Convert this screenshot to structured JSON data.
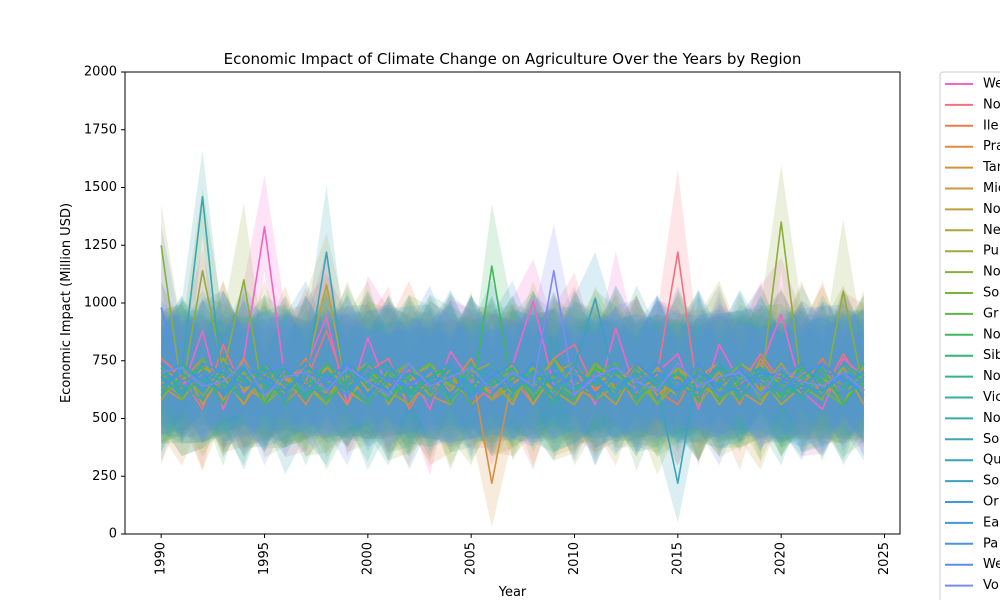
{
  "chart_data": {
    "type": "line",
    "title": "Economic Impact of Climate Change on Agriculture Over the Years by Region",
    "xlabel": "Year",
    "ylabel": "Economic Impact (Million USD)",
    "xlim": [
      1988.25,
      2025.75
    ],
    "ylim": [
      0,
      2000
    ],
    "x_ticks": [
      1990,
      1995,
      2000,
      2005,
      2010,
      2015,
      2020,
      2025
    ],
    "x_tick_labels": [
      "1990",
      "1995",
      "2000",
      "2005",
      "2010",
      "2015",
      "2020",
      "2025"
    ],
    "y_ticks": [
      0,
      250,
      500,
      750,
      1000,
      1250,
      1500,
      1750,
      2000
    ],
    "y_tick_labels": [
      "0",
      "250",
      "500",
      "750",
      "1000",
      "1250",
      "1500",
      "1750",
      "2000"
    ],
    "x_tick_rotation": "vertical",
    "grid": false,
    "legend_placement": "outside-right",
    "confidence_band": true,
    "x": [
      1990,
      1991,
      1992,
      1993,
      1994,
      1995,
      1996,
      1997,
      1998,
      1999,
      2000,
      2001,
      2002,
      2003,
      2004,
      2005,
      2006,
      2007,
      2008,
      2009,
      2010,
      2011,
      2012,
      2013,
      2014,
      2015,
      2016,
      2017,
      2018,
      2019,
      2020,
      2021,
      2022,
      2023,
      2024
    ],
    "series": [
      {
        "name": "We",
        "color": "#f564c5",
        "values": [
          700,
          620,
          880,
          540,
          760,
          1330,
          660,
          720,
          940,
          560,
          850,
          620,
          710,
          540,
          790,
          660,
          580,
          730,
          1010,
          640,
          720,
          560,
          890,
          610,
          700,
          780,
          540,
          820,
          660,
          720,
          950,
          620,
          540,
          760,
          680
        ]
      },
      {
        "name": "No",
        "color": "#f5707e",
        "values": [
          760,
          680,
          540,
          820,
          610,
          720,
          560,
          660,
          880,
          620,
          700,
          760,
          540,
          690,
          620,
          740,
          600,
          680,
          560,
          760,
          820,
          620,
          700,
          560,
          690,
          1220,
          580,
          720,
          640,
          780,
          660,
          720,
          600,
          780,
          640
        ]
      },
      {
        "name": "Ile",
        "color": "#ee7a4e",
        "values": [
          680,
          720,
          620,
          740,
          560,
          690,
          640,
          760,
          610,
          700,
          580,
          650,
          740,
          620,
          700,
          560,
          640,
          720,
          660,
          580,
          740,
          620,
          680,
          700,
          620,
          560,
          720,
          660,
          740,
          620,
          700,
          640,
          760,
          600,
          680
        ]
      },
      {
        "name": "Pra",
        "color": "#e08a42",
        "values": [
          640,
          580,
          700,
          620,
          760,
          600,
          680,
          560,
          720,
          640,
          700,
          620,
          560,
          700,
          640,
          760,
          580,
          640,
          720,
          620,
          560,
          700,
          640,
          740,
          600,
          680,
          620,
          700,
          560,
          760,
          640,
          600,
          700,
          640,
          720
        ]
      },
      {
        "name": "Tar",
        "color": "#d4903f",
        "values": [
          720,
          660,
          760,
          580,
          680,
          620,
          740,
          600,
          680,
          560,
          720,
          640,
          700,
          600,
          560,
          720,
          220,
          680,
          620,
          760,
          640,
          580,
          700,
          620,
          680,
          640,
          720,
          580,
          660,
          700,
          620,
          740,
          600,
          680,
          640
        ]
      },
      {
        "name": "Mic",
        "color": "#c79a3c",
        "values": [
          600,
          740,
          560,
          700,
          640,
          580,
          720,
          660,
          560,
          740,
          620,
          700,
          640,
          580,
          720,
          600,
          680,
          560,
          740,
          600,
          700,
          640,
          560,
          720,
          660,
          600,
          680,
          740,
          620,
          560,
          700,
          660,
          600,
          720,
          560
        ]
      },
      {
        "name": "No",
        "color": "#b9a239",
        "values": [
          660,
          600,
          720,
          680,
          560,
          740,
          600,
          700,
          1080,
          620,
          560,
          720,
          660,
          740,
          600,
          680,
          620,
          740,
          560,
          700,
          640,
          720,
          600,
          680,
          560,
          720,
          640,
          600,
          740,
          680,
          560,
          640,
          720,
          600,
          700
        ]
      },
      {
        "name": "Ne",
        "color": "#aba638",
        "values": [
          700,
          640,
          580,
          760,
          620,
          700,
          560,
          640,
          720,
          680,
          740,
          560,
          700,
          660,
          620,
          700,
          740,
          600,
          680,
          620,
          560,
          740,
          660,
          600,
          720,
          640,
          700,
          560,
          680,
          620,
          740,
          600,
          680,
          560,
          740
        ]
      },
      {
        "name": "Pu",
        "color": "#9caa37",
        "values": [
          580,
          700,
          660,
          620,
          700,
          560,
          680,
          620,
          740,
          600,
          660,
          700,
          580,
          740,
          640,
          600,
          720,
          660,
          620,
          700,
          740,
          580,
          640,
          720,
          560,
          660,
          600,
          700,
          620,
          740,
          580,
          700,
          640,
          720,
          600
        ]
      },
      {
        "name": "No",
        "color": "#8cae3a",
        "values": [
          1250,
          620,
          1140,
          700,
          1100,
          560,
          640,
          720,
          600,
          680,
          740,
          620,
          560,
          700,
          640,
          720,
          580,
          680,
          640,
          760,
          600,
          660,
          700,
          580,
          640,
          720,
          560,
          680,
          700,
          620,
          1350,
          640,
          580,
          1050,
          620
        ]
      },
      {
        "name": "So",
        "color": "#78b33f",
        "values": [
          640,
          700,
          600,
          660,
          720,
          580,
          700,
          640,
          560,
          720,
          600,
          680,
          740,
          600,
          660,
          700,
          640,
          580,
          720,
          660,
          600,
          740,
          620,
          680,
          560,
          700,
          660,
          620,
          740,
          580,
          680,
          720,
          620,
          560,
          700
        ]
      },
      {
        "name": "Gr",
        "color": "#5cb84a",
        "values": [
          720,
          580,
          760,
          640,
          680,
          700,
          560,
          720,
          660,
          620,
          700,
          580,
          680,
          740,
          560,
          700,
          640,
          720,
          600,
          680,
          620,
          700,
          740,
          560,
          680,
          620,
          700,
          640,
          580,
          720,
          640,
          680,
          600,
          740,
          660
        ]
      },
      {
        "name": "No",
        "color": "#3fb85c",
        "values": [
          600,
          680,
          720,
          560,
          740,
          640,
          620,
          700,
          580,
          660,
          720,
          640,
          600,
          680,
          720,
          560,
          1160,
          620,
          700,
          640,
          580,
          720,
          660,
          600,
          740,
          640,
          700,
          580,
          660,
          720,
          600,
          640,
          720,
          560,
          680
        ]
      },
      {
        "name": "Sib",
        "color": "#36b478",
        "values": [
          680,
          740,
          620,
          700,
          580,
          720,
          660,
          600,
          740,
          640,
          560,
          700,
          620,
          680,
          740,
          600,
          660,
          720,
          580,
          700,
          640,
          600,
          720,
          660,
          620,
          700,
          580,
          740,
          640,
          680,
          600,
          720,
          660,
          600,
          740
        ]
      },
      {
        "name": "No",
        "color": "#36b08e",
        "values": [
          740,
          600,
          680,
          620,
          740,
          560,
          700,
          660,
          620,
          720,
          640,
          580,
          700,
          660,
          600,
          740,
          620,
          680,
          700,
          560,
          720,
          640,
          680,
          600,
          740,
          620,
          660,
          720,
          580,
          700,
          640,
          600,
          740,
          660,
          620
        ]
      },
      {
        "name": "Vic",
        "color": "#37ad9d",
        "values": [
          620,
          720,
          660,
          740,
          600,
          680,
          720,
          580,
          700,
          640,
          680,
          740,
          600,
          640,
          700,
          620,
          680,
          600,
          740,
          660,
          620,
          700,
          580,
          720,
          640,
          700,
          620,
          660,
          740,
          600,
          720,
          580,
          680,
          640,
          700
        ]
      },
      {
        "name": "No",
        "color": "#38aaa8",
        "values": [
          700,
          640,
          580,
          720,
          660,
          620,
          740,
          600,
          680,
          720,
          580,
          660,
          700,
          620,
          740,
          640,
          600,
          700,
          660,
          620,
          740,
          580,
          700,
          640,
          680,
          620,
          720,
          600,
          700,
          660,
          580,
          740,
          620,
          700,
          640
        ]
      },
      {
        "name": "So",
        "color": "#39a7b2",
        "values": [
          660,
          700,
          1460,
          600,
          680,
          720,
          560,
          640,
          700,
          620,
          740,
          660,
          600,
          720,
          580,
          680,
          640,
          700,
          620,
          740,
          600,
          660,
          720,
          580,
          680,
          640,
          600,
          720,
          660,
          700,
          620,
          680,
          740,
          600,
          660
        ]
      },
      {
        "name": "Qu",
        "color": "#3aa4bb",
        "values": [
          720,
          620,
          700,
          660,
          580,
          740,
          640,
          680,
          1220,
          600,
          700,
          620,
          740,
          660,
          600,
          720,
          680,
          620,
          740,
          580,
          700,
          660,
          620,
          700,
          640,
          220,
          740,
          600,
          680,
          720,
          620,
          660,
          600,
          740,
          680
        ]
      },
      {
        "name": "So",
        "color": "#3ca0c5",
        "values": [
          600,
          740,
          660,
          620,
          720,
          600,
          680,
          740,
          640,
          700,
          600,
          720,
          660,
          580,
          700,
          640,
          740,
          620,
          680,
          600,
          720,
          1020,
          640,
          680,
          740,
          600,
          700,
          640,
          620,
          720,
          660,
          600,
          700,
          680,
          620
        ]
      },
      {
        "name": "Or",
        "color": "#3e9ccf",
        "values": [
          680,
          600,
          740,
          700,
          640,
          660,
          600,
          720,
          680,
          620,
          700,
          740,
          580,
          680,
          660,
          600,
          720,
          640,
          700,
          660,
          740,
          600,
          680,
          620,
          700,
          660,
          620,
          740,
          600,
          680,
          700,
          640,
          620,
          700,
          660
        ]
      },
      {
        "name": "Ea",
        "color": "#4297da",
        "values": [
          640,
          700,
          620,
          740,
          680,
          600,
          720,
          640,
          600,
          740,
          660,
          620,
          700,
          640,
          720,
          600,
          680,
          740,
          620,
          700,
          640,
          680,
          600,
          740,
          660,
          620,
          700,
          640,
          720,
          600,
          660,
          740,
          620,
          680,
          600
        ]
      },
      {
        "name": "Pa",
        "color": "#4b90e6",
        "values": [
          740,
          660,
          700,
          600,
          720,
          680,
          620,
          700,
          660,
          740,
          600,
          680,
          640,
          720,
          600,
          700,
          620,
          660,
          740,
          640,
          680,
          600,
          720,
          660,
          700,
          620,
          740,
          600,
          640,
          700,
          680,
          620,
          740,
          660,
          700
        ]
      },
      {
        "name": "We",
        "color": "#5c8bf0",
        "values": [
          980,
          640,
          680,
          720,
          600,
          700,
          740,
          620,
          680,
          600,
          720,
          660,
          640,
          700,
          740,
          580,
          700,
          640,
          680,
          720,
          600,
          700,
          660,
          620,
          740,
          640,
          680,
          600,
          720,
          660,
          620,
          700,
          740,
          600,
          680
        ]
      },
      {
        "name": "Vo",
        "color": "#7e89f5",
        "values": [
          700,
          720,
          640,
          660,
          740,
          600,
          680,
          700,
          620,
          720,
          660,
          600,
          740,
          640,
          680,
          720,
          620,
          700,
          640,
          1140,
          600,
          680,
          720,
          660,
          620,
          740,
          640,
          680,
          700,
          600,
          720,
          660,
          640,
          700,
          620
        ]
      }
    ]
  }
}
